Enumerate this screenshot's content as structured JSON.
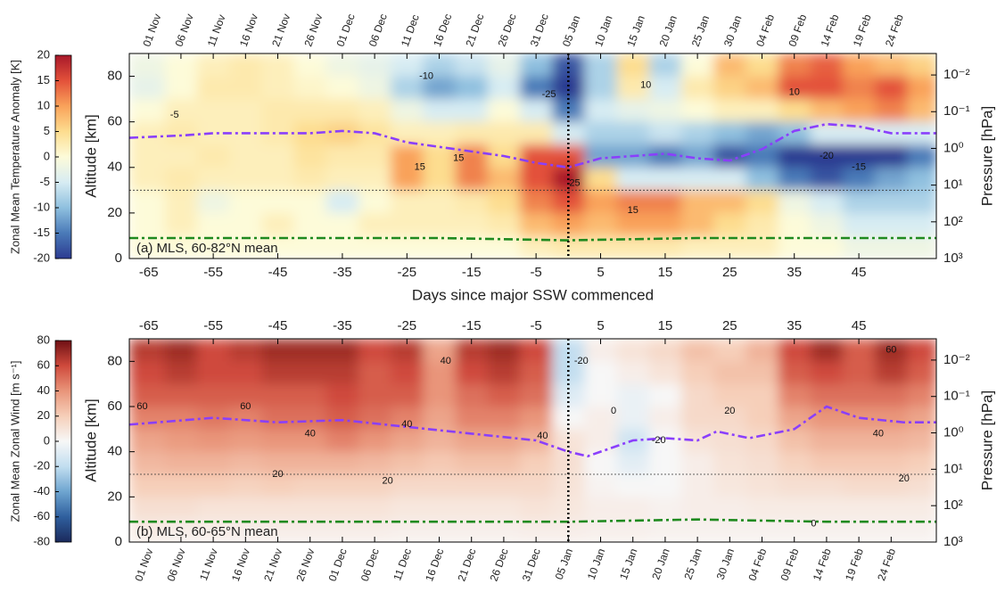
{
  "chart_data": [
    {
      "type": "contour",
      "title": "(a) MLS, 60-82°N mean",
      "ylabel": "Altitude [km]",
      "y2label": "Pressure [hPa]",
      "xlabel": "Days since major SSW commenced",
      "colorbar_label": "Zonal Mean Temperature Anomaly [K]",
      "date_axis": "top",
      "xlim": [
        -68,
        57
      ],
      "xticks": [
        -65,
        -55,
        -45,
        -35,
        -25,
        -15,
        -5,
        5,
        15,
        25,
        35,
        45
      ],
      "dateticks": [
        {
          "value": -65,
          "label": "01 Nov"
        },
        {
          "value": -60,
          "label": "06 Nov"
        },
        {
          "value": -55,
          "label": "11 Nov"
        },
        {
          "value": -50,
          "label": "16 Nov"
        },
        {
          "value": -45,
          "label": "21 Nov"
        },
        {
          "value": -40,
          "label": "26 Nov"
        },
        {
          "value": -35,
          "label": "01 Dec"
        },
        {
          "value": -30,
          "label": "06 Dec"
        },
        {
          "value": -25,
          "label": "11 Dec"
        },
        {
          "value": -20,
          "label": "16 Dec"
        },
        {
          "value": -15,
          "label": "21 Dec"
        },
        {
          "value": -10,
          "label": "26 Dec"
        },
        {
          "value": -5,
          "label": "31 Dec"
        },
        {
          "value": 0,
          "label": "05 Jan"
        },
        {
          "value": 5,
          "label": "10 Jan"
        },
        {
          "value": 10,
          "label": "15 Jan"
        },
        {
          "value": 15,
          "label": "20 Jan"
        },
        {
          "value": 20,
          "label": "25 Jan"
        },
        {
          "value": 25,
          "label": "30 Jan"
        },
        {
          "value": 30,
          "label": "04 Feb"
        },
        {
          "value": 35,
          "label": "09 Feb"
        },
        {
          "value": 40,
          "label": "14 Feb"
        },
        {
          "value": 45,
          "label": "19 Feb"
        },
        {
          "value": 50,
          "label": "24 Feb"
        }
      ],
      "ylim": [
        0,
        90
      ],
      "yticks": [
        0,
        20,
        40,
        60,
        80
      ],
      "y2scale": "log",
      "y2lim": [
        1000,
        0.0026
      ],
      "y2ticks": [
        {
          "value": 1000,
          "label": "10³"
        },
        {
          "value": 100,
          "label": "10²"
        },
        {
          "value": 10,
          "label": "10¹"
        },
        {
          "value": 1,
          "label": "10⁰"
        },
        {
          "value": 0.1,
          "label": "10⁻¹"
        },
        {
          "value": 0.01,
          "label": "10⁻²"
        }
      ],
      "clim": [
        -20,
        20
      ],
      "cticks": [
        -20,
        -15,
        -10,
        -5,
        0,
        5,
        10,
        15,
        20
      ],
      "colormap": [
        "#2c3b91",
        "#4a7ab8",
        "#8fc0df",
        "#d7ecf3",
        "#fdfbd9",
        "#fddd8f",
        "#f9a25a",
        "#e3513a",
        "#a8182a"
      ],
      "vline": 0,
      "hline": 30,
      "x_grid": [
        -65,
        -60,
        -55,
        -50,
        -45,
        -40,
        -35,
        -30,
        -25,
        -20,
        -15,
        -10,
        -5,
        0,
        5,
        10,
        15,
        20,
        25,
        30,
        35,
        40,
        45,
        50,
        55
      ],
      "y_grid": [
        85,
        75,
        65,
        55,
        45,
        35,
        25,
        15,
        5
      ],
      "z": [
        [
          -2,
          0,
          2,
          3,
          2,
          0,
          -2,
          -3,
          -5,
          -8,
          -6,
          -3,
          -10,
          -18,
          -8,
          5,
          -8,
          0,
          8,
          5,
          12,
          14,
          10,
          8,
          6
        ],
        [
          -3,
          0,
          3,
          3,
          2,
          1,
          0,
          -2,
          -8,
          -12,
          -10,
          -5,
          -15,
          -22,
          -8,
          3,
          -5,
          3,
          6,
          8,
          15,
          15,
          12,
          15,
          10
        ],
        [
          0,
          2,
          2,
          2,
          3,
          3,
          3,
          2,
          -2,
          -5,
          -5,
          0,
          -5,
          -15,
          -5,
          -3,
          -2,
          0,
          2,
          2,
          5,
          8,
          10,
          12,
          8
        ],
        [
          2,
          3,
          2,
          2,
          3,
          5,
          6,
          4,
          2,
          2,
          3,
          3,
          3,
          -5,
          -8,
          -8,
          -6,
          -8,
          -10,
          -12,
          -10,
          -5,
          -5,
          -5,
          -5
        ],
        [
          2,
          2,
          3,
          2,
          2,
          4,
          3,
          3,
          10,
          5,
          12,
          5,
          15,
          15,
          -12,
          -12,
          -15,
          -12,
          -18,
          -15,
          -22,
          -22,
          -22,
          -20,
          -15
        ],
        [
          2,
          3,
          2,
          2,
          2,
          3,
          2,
          2,
          10,
          5,
          12,
          8,
          15,
          22,
          5,
          -5,
          -5,
          -5,
          -5,
          -10,
          -15,
          -18,
          -15,
          -12,
          -10
        ],
        [
          0,
          2,
          -2,
          0,
          0,
          0,
          -5,
          0,
          2,
          2,
          3,
          5,
          12,
          15,
          10,
          12,
          12,
          8,
          8,
          5,
          -2,
          -5,
          -8,
          -8,
          -8
        ],
        [
          0,
          2,
          0,
          0,
          2,
          0,
          0,
          2,
          2,
          2,
          2,
          3,
          8,
          10,
          8,
          10,
          10,
          8,
          5,
          3,
          0,
          -2,
          -5,
          -5,
          -5
        ],
        [
          0,
          0,
          0,
          0,
          0,
          0,
          0,
          0,
          0,
          0,
          0,
          0,
          2,
          3,
          3,
          3,
          3,
          2,
          2,
          2,
          0,
          0,
          -2,
          -2,
          -2
        ]
      ],
      "contour_labels": [
        {
          "x": -61,
          "y": 63,
          "value": -5
        },
        {
          "x": -22,
          "y": 80,
          "value": -10
        },
        {
          "x": -23,
          "y": 40,
          "value": 15
        },
        {
          "x": -17,
          "y": 44,
          "value": 15
        },
        {
          "x": -3,
          "y": 72,
          "value": -25
        },
        {
          "x": 1,
          "y": 33,
          "value": 25
        },
        {
          "x": 10,
          "y": 21,
          "value": 15
        },
        {
          "x": 12,
          "y": 76,
          "value": 10
        },
        {
          "x": 35,
          "y": 73,
          "value": 10
        },
        {
          "x": 40,
          "y": 45,
          "value": -20
        },
        {
          "x": 45,
          "y": 40,
          "value": -15
        }
      ],
      "series": [
        {
          "color": "#8a3ffc",
          "style": "dashdot",
          "x": [
            -68,
            -60,
            -55,
            -50,
            -45,
            -40,
            -35,
            -30,
            -25,
            -20,
            -15,
            -10,
            -5,
            0,
            5,
            10,
            15,
            20,
            25,
            30,
            35,
            40,
            45,
            50,
            57
          ],
          "values": [
            53,
            54,
            55,
            55,
            55,
            55,
            56,
            55,
            51,
            49,
            47,
            45,
            42,
            40,
            44,
            45,
            46,
            44,
            43,
            48,
            56,
            59,
            58,
            55,
            55
          ]
        },
        {
          "color": "#1f8a1f",
          "style": "dashdot",
          "x": [
            -68,
            -45,
            -20,
            0,
            20,
            40,
            57
          ],
          "values": [
            9,
            9,
            9,
            8,
            9,
            9,
            9
          ]
        }
      ]
    },
    {
      "type": "contour",
      "title": "(b) MLS, 60-65°N mean",
      "ylabel": "Altitude [km]",
      "y2label": "Pressure [hPa]",
      "colorbar_label": "Zonal Mean Zonal Wind [m s⁻¹]",
      "date_axis": "bottom",
      "xlim": [
        -68,
        57
      ],
      "xticks": [
        -65,
        -55,
        -45,
        -35,
        -25,
        -15,
        -5,
        5,
        15,
        25,
        35,
        45
      ],
      "dateticks": [
        {
          "value": -65,
          "label": "01 Nov"
        },
        {
          "value": -60,
          "label": "06 Nov"
        },
        {
          "value": -55,
          "label": "11 Nov"
        },
        {
          "value": -50,
          "label": "16 Nov"
        },
        {
          "value": -45,
          "label": "21 Nov"
        },
        {
          "value": -40,
          "label": "26 Nov"
        },
        {
          "value": -35,
          "label": "01 Dec"
        },
        {
          "value": -30,
          "label": "06 Dec"
        },
        {
          "value": -25,
          "label": "11 Dec"
        },
        {
          "value": -20,
          "label": "16 Dec"
        },
        {
          "value": -15,
          "label": "21 Dec"
        },
        {
          "value": -10,
          "label": "26 Dec"
        },
        {
          "value": -5,
          "label": "31 Dec"
        },
        {
          "value": 0,
          "label": "05 Jan"
        },
        {
          "value": 5,
          "label": "10 Jan"
        },
        {
          "value": 10,
          "label": "15 Jan"
        },
        {
          "value": 15,
          "label": "20 Jan"
        },
        {
          "value": 20,
          "label": "25 Jan"
        },
        {
          "value": 25,
          "label": "30 Jan"
        },
        {
          "value": 30,
          "label": "04 Feb"
        },
        {
          "value": 35,
          "label": "09 Feb"
        },
        {
          "value": 40,
          "label": "14 Feb"
        },
        {
          "value": 45,
          "label": "19 Feb"
        },
        {
          "value": 50,
          "label": "24 Feb"
        }
      ],
      "ylim": [
        0,
        90
      ],
      "yticks": [
        0,
        20,
        40,
        60,
        80
      ],
      "y2scale": "log",
      "y2lim": [
        1000,
        0.0026
      ],
      "y2ticks": [
        {
          "value": 1000,
          "label": "10³"
        },
        {
          "value": 100,
          "label": "10²"
        },
        {
          "value": 10,
          "label": "10¹"
        },
        {
          "value": 1,
          "label": "10⁰"
        },
        {
          "value": 0.1,
          "label": "10⁻¹"
        },
        {
          "value": 0.01,
          "label": "10⁻²"
        }
      ],
      "clim": [
        -80,
        80
      ],
      "cticks": [
        -80,
        -60,
        -40,
        -20,
        0,
        20,
        40,
        60,
        80
      ],
      "colormap": [
        "#1b2a5c",
        "#2f5f9e",
        "#6ea5d0",
        "#c2def0",
        "#f7f7f7",
        "#f6cfb9",
        "#e9957a",
        "#cf4a3c",
        "#6f1014"
      ],
      "vline": 0,
      "hline": 30,
      "x_grid": [
        -65,
        -60,
        -55,
        -50,
        -45,
        -40,
        -35,
        -30,
        -25,
        -20,
        -15,
        -10,
        -5,
        0,
        5,
        10,
        15,
        20,
        25,
        30,
        35,
        40,
        45,
        50,
        55
      ],
      "y_grid": [
        85,
        75,
        65,
        55,
        45,
        35,
        25,
        15,
        5
      ],
      "z": [
        [
          65,
          70,
          60,
          65,
          70,
          70,
          70,
          60,
          65,
          35,
          65,
          70,
          60,
          -20,
          5,
          10,
          15,
          25,
          20,
          30,
          60,
          70,
          55,
          70,
          60
        ],
        [
          60,
          65,
          60,
          60,
          65,
          65,
          65,
          55,
          60,
          40,
          60,
          65,
          55,
          -20,
          0,
          5,
          10,
          20,
          25,
          25,
          55,
          60,
          55,
          65,
          55
        ],
        [
          55,
          55,
          55,
          55,
          55,
          55,
          60,
          55,
          55,
          40,
          50,
          55,
          50,
          -10,
          0,
          -5,
          0,
          15,
          20,
          20,
          45,
          50,
          50,
          50,
          45
        ],
        [
          45,
          45,
          48,
          45,
          50,
          50,
          55,
          50,
          45,
          35,
          45,
          45,
          40,
          0,
          5,
          -5,
          5,
          15,
          15,
          20,
          35,
          40,
          40,
          40,
          35
        ],
        [
          35,
          38,
          40,
          38,
          40,
          40,
          45,
          40,
          35,
          30,
          35,
          35,
          30,
          10,
          5,
          -15,
          0,
          10,
          12,
          15,
          25,
          30,
          30,
          30,
          28
        ],
        [
          28,
          30,
          30,
          28,
          30,
          30,
          30,
          28,
          25,
          22,
          25,
          25,
          20,
          12,
          0,
          -8,
          0,
          5,
          10,
          12,
          18,
          22,
          22,
          22,
          20
        ],
        [
          20,
          20,
          20,
          18,
          20,
          18,
          18,
          18,
          15,
          15,
          15,
          15,
          15,
          10,
          2,
          0,
          0,
          5,
          8,
          10,
          12,
          12,
          14,
          14,
          12
        ],
        [
          12,
          12,
          10,
          10,
          10,
          10,
          10,
          10,
          8,
          8,
          8,
          8,
          10,
          8,
          5,
          5,
          3,
          5,
          5,
          6,
          6,
          6,
          6,
          6,
          6
        ],
        [
          6,
          5,
          5,
          5,
          5,
          5,
          5,
          5,
          4,
          4,
          4,
          4,
          5,
          5,
          4,
          4,
          3,
          3,
          3,
          3,
          3,
          3,
          3,
          3,
          3
        ]
      ],
      "contour_labels": [
        {
          "x": -66,
          "y": 60,
          "value": 60
        },
        {
          "x": -50,
          "y": 60,
          "value": 60
        },
        {
          "x": -40,
          "y": 48,
          "value": 40
        },
        {
          "x": -45,
          "y": 30,
          "value": 20
        },
        {
          "x": -28,
          "y": 27,
          "value": 20
        },
        {
          "x": -25,
          "y": 52,
          "value": 40
        },
        {
          "x": -19,
          "y": 80,
          "value": 40
        },
        {
          "x": -4,
          "y": 47,
          "value": 40
        },
        {
          "x": 2,
          "y": 80,
          "value": -20
        },
        {
          "x": 14,
          "y": 45,
          "value": -20
        },
        {
          "x": 7,
          "y": 58,
          "value": 0
        },
        {
          "x": 25,
          "y": 58,
          "value": 20
        },
        {
          "x": 38,
          "y": 8,
          "value": 0
        },
        {
          "x": 50,
          "y": 85,
          "value": 60
        },
        {
          "x": 48,
          "y": 48,
          "value": 40
        },
        {
          "x": 52,
          "y": 28,
          "value": 20
        }
      ],
      "series": [
        {
          "color": "#8a3ffc",
          "style": "dashdot",
          "x": [
            -68,
            -55,
            -45,
            -35,
            -25,
            -15,
            -5,
            0,
            3,
            10,
            15,
            20,
            23,
            28,
            35,
            40,
            45,
            52,
            57
          ],
          "values": [
            52,
            55,
            53,
            54,
            51,
            48,
            45,
            40,
            38,
            45,
            46,
            45,
            49,
            46,
            50,
            60,
            55,
            53,
            53
          ]
        },
        {
          "color": "#1f8a1f",
          "style": "dashdot",
          "x": [
            -68,
            -45,
            -20,
            0,
            20,
            40,
            57
          ],
          "values": [
            9,
            9,
            9,
            9,
            10,
            9,
            9
          ]
        }
      ]
    }
  ]
}
